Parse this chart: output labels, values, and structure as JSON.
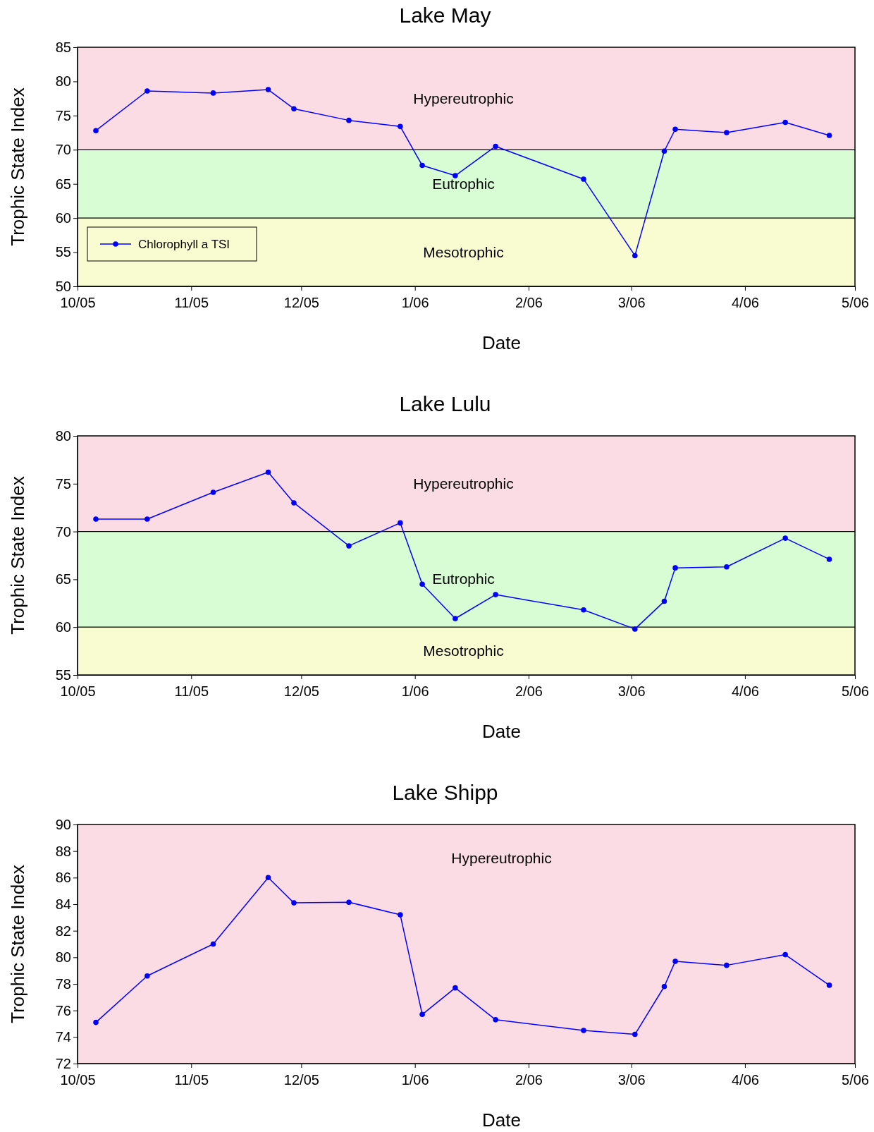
{
  "chart_data": [
    {
      "type": "line",
      "title": "Lake May",
      "xlabel": "Date",
      "ylabel": "Trophic State Index",
      "marker": "circle",
      "legend": "bottom left",
      "grid": false,
      "x": [
        "2005-10-06",
        "2005-10-20",
        "2005-11-07",
        "2005-11-22",
        "2005-11-29",
        "2005-12-14",
        "2005-12-28",
        "2006-01-03",
        "2006-01-12",
        "2006-01-23",
        "2006-02-16",
        "2006-03-02",
        "2006-03-10",
        "2006-03-13",
        "2006-03-27",
        "2006-04-12",
        "2006-04-24"
      ],
      "series": [
        {
          "name": "Chlorophyll a TSI",
          "color": "#0000ff",
          "values": [
            72.8,
            78.6,
            78.3,
            78.8,
            76.0,
            74.3,
            73.4,
            67.7,
            66.2,
            70.5,
            65.7,
            54.5,
            69.8,
            73.0,
            72.5,
            74.0,
            72.1
          ]
        }
      ],
      "xlim": [
        "2005-10-01",
        "2006-05-01"
      ],
      "xticks": [
        {
          "value": "2005-10-01",
          "label": "10/05"
        },
        {
          "value": "2005-11-01",
          "label": "11/05"
        },
        {
          "value": "2005-12-01",
          "label": "12/05"
        },
        {
          "value": "2006-01-01",
          "label": "1/06"
        },
        {
          "value": "2006-02-01",
          "label": "2/06"
        },
        {
          "value": "2006-03-01",
          "label": "3/06"
        },
        {
          "value": "2006-04-01",
          "label": "4/06"
        },
        {
          "value": "2006-05-01",
          "label": "5/06"
        }
      ],
      "ylim": [
        50,
        85
      ],
      "yticks": [
        50,
        55,
        60,
        65,
        70,
        75,
        80,
        85
      ],
      "bands": [
        {
          "axis": "y",
          "from": 70,
          "to": 85,
          "label": "Hypereutrophic",
          "color": "#fcdce4"
        },
        {
          "axis": "y",
          "from": 60,
          "to": 70,
          "label": "Eutrophic",
          "color": "#d8fcd4"
        },
        {
          "axis": "y",
          "from": 50,
          "to": 60,
          "label": "Mesotrophic",
          "color": "#f8fcd0"
        }
      ],
      "ref_lines": [
        {
          "axis": "y",
          "value": 70,
          "color": "#000000"
        },
        {
          "axis": "y",
          "value": 60,
          "color": "#000000"
        }
      ]
    },
    {
      "type": "line",
      "title": "Lake Lulu",
      "xlabel": "Date",
      "ylabel": "Trophic State Index",
      "marker": "circle",
      "grid": false,
      "x": [
        "2005-10-06",
        "2005-10-20",
        "2005-11-07",
        "2005-11-22",
        "2005-11-29",
        "2005-12-14",
        "2005-12-28",
        "2006-01-03",
        "2006-01-12",
        "2006-01-23",
        "2006-02-16",
        "2006-03-02",
        "2006-03-10",
        "2006-03-13",
        "2006-03-27",
        "2006-04-12",
        "2006-04-24"
      ],
      "series": [
        {
          "color": "#0000ff",
          "values": [
            71.3,
            71.3,
            74.1,
            76.2,
            73.0,
            68.5,
            70.9,
            64.5,
            60.9,
            63.4,
            61.8,
            59.8,
            62.7,
            66.2,
            66.3,
            69.3,
            67.1
          ]
        }
      ],
      "xlim": [
        "2005-10-01",
        "2006-05-01"
      ],
      "xticks": [
        {
          "value": "2005-10-01",
          "label": "10/05"
        },
        {
          "value": "2005-11-01",
          "label": "11/05"
        },
        {
          "value": "2005-12-01",
          "label": "12/05"
        },
        {
          "value": "2006-01-01",
          "label": "1/06"
        },
        {
          "value": "2006-02-01",
          "label": "2/06"
        },
        {
          "value": "2006-03-01",
          "label": "3/06"
        },
        {
          "value": "2006-04-01",
          "label": "4/06"
        },
        {
          "value": "2006-05-01",
          "label": "5/06"
        }
      ],
      "ylim": [
        55,
        80
      ],
      "yticks": [
        55,
        60,
        65,
        70,
        75,
        80
      ],
      "bands": [
        {
          "axis": "y",
          "from": 70,
          "to": 80,
          "label": "Hypereutrophic",
          "color": "#fcdce4"
        },
        {
          "axis": "y",
          "from": 60,
          "to": 70,
          "label": "Eutrophic",
          "color": "#d8fcd4"
        },
        {
          "axis": "y",
          "from": 55,
          "to": 60,
          "label": "Mesotrophic",
          "color": "#f8fcd0"
        }
      ],
      "ref_lines": [
        {
          "axis": "y",
          "value": 70,
          "color": "#000000"
        },
        {
          "axis": "y",
          "value": 60,
          "color": "#000000"
        }
      ]
    },
    {
      "type": "line",
      "title": "Lake Shipp",
      "xlabel": "Date",
      "ylabel": "Trophic State Index",
      "marker": "circle",
      "grid": false,
      "x": [
        "2005-10-06",
        "2005-10-20",
        "2005-11-07",
        "2005-11-22",
        "2005-11-29",
        "2005-12-14",
        "2005-12-28",
        "2006-01-03",
        "2006-01-12",
        "2006-01-23",
        "2006-02-16",
        "2006-03-02",
        "2006-03-10",
        "2006-03-13",
        "2006-03-27",
        "2006-04-12",
        "2006-04-24"
      ],
      "series": [
        {
          "color": "#0000ff",
          "values": [
            75.1,
            78.6,
            81.0,
            86.0,
            84.1,
            84.15,
            83.2,
            75.7,
            77.7,
            75.3,
            74.5,
            74.2,
            77.8,
            79.7,
            79.4,
            80.2,
            77.9
          ]
        }
      ],
      "xlim": [
        "2005-10-01",
        "2006-05-01"
      ],
      "xticks": [
        {
          "value": "2005-10-01",
          "label": "10/05"
        },
        {
          "value": "2005-11-01",
          "label": "11/05"
        },
        {
          "value": "2005-12-01",
          "label": "12/05"
        },
        {
          "value": "2006-01-01",
          "label": "1/06"
        },
        {
          "value": "2006-02-01",
          "label": "2/06"
        },
        {
          "value": "2006-03-01",
          "label": "3/06"
        },
        {
          "value": "2006-04-01",
          "label": "4/06"
        },
        {
          "value": "2006-05-01",
          "label": "5/06"
        }
      ],
      "ylim": [
        72,
        90
      ],
      "yticks": [
        72,
        74,
        76,
        78,
        80,
        82,
        84,
        86,
        88,
        90
      ],
      "bands": [
        {
          "axis": "y",
          "from": 72,
          "to": 90,
          "label": "Hypereutrophic",
          "color": "#fcdce4"
        }
      ]
    }
  ]
}
